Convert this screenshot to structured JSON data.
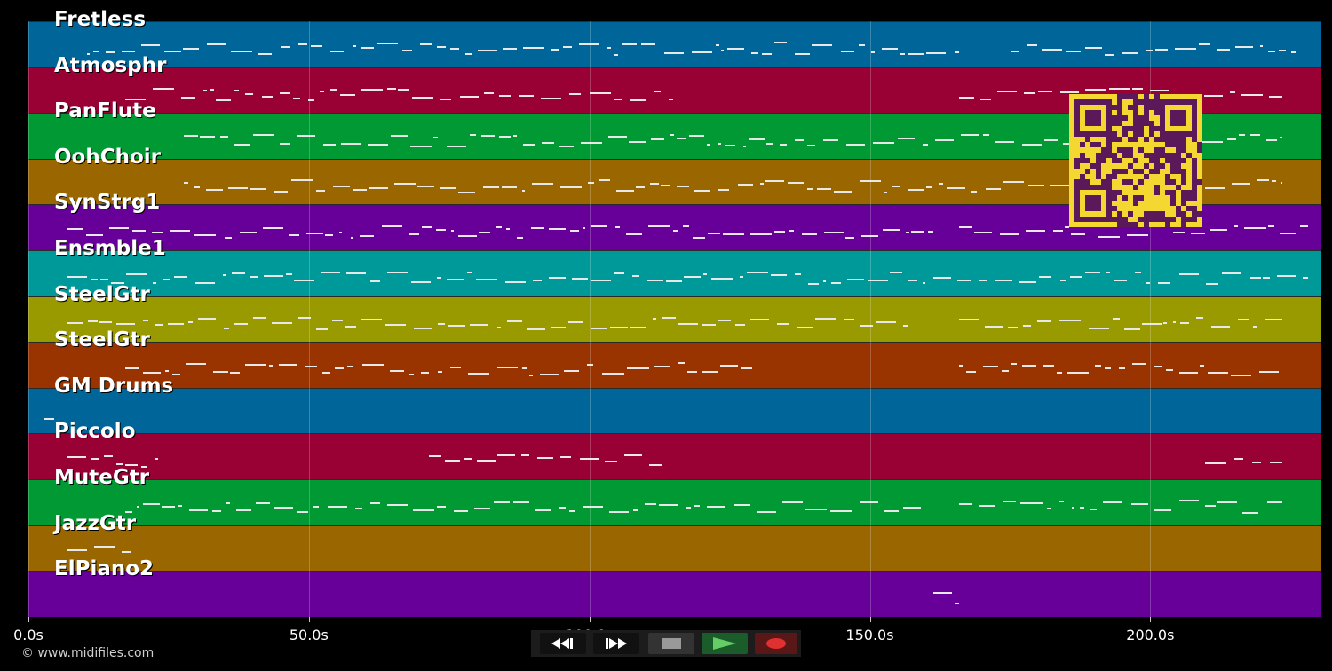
{
  "tracks": [
    {
      "name": "Fretless",
      "color": "#006699"
    },
    {
      "name": "Atmosphr",
      "color": "#990033"
    },
    {
      "name": "PanFlute",
      "color": "#009933"
    },
    {
      "name": "OohChoir",
      "color": "#996600"
    },
    {
      "name": "SynStrg1",
      "color": "#660099"
    },
    {
      "name": "Ensmble1",
      "color": "#009999"
    },
    {
      "name": "SteelGtr",
      "color": "#999900"
    },
    {
      "name": "SteelGtr",
      "color": "#993300"
    },
    {
      "name": "GM Drums",
      "color": "#006699"
    },
    {
      "name": "Piccolo",
      "color": "#990033"
    },
    {
      "name": "MuteGtr",
      "color": "#009933"
    },
    {
      "name": "JazzGtr",
      "color": "#996600"
    },
    {
      "name": "ElPiano2",
      "color": "#660099"
    }
  ],
  "timeline": {
    "ticks": [
      "0.0s",
      "50.0s",
      "100.0s",
      "150.0s",
      "200.0s"
    ],
    "tick_seconds": [
      0,
      50,
      100,
      150,
      200
    ],
    "max_seconds": 230.5
  },
  "transport": {
    "rewind_icon": "rewind-icon",
    "fast_forward_icon": "fast-forward-icon",
    "stop_icon": "stop-icon",
    "play_icon": "play-icon",
    "record_icon": "record-icon",
    "colors": {
      "button_bg": "#111111",
      "stop_bg": "#333333",
      "play_bg": "#1a5c2a",
      "play_fg": "#66cc66",
      "record_bg": "#5a1717",
      "record_fg": "#e03030"
    }
  },
  "overlay": {
    "qr_icon": "qr-code-icon",
    "qr_bg": "#f5d731",
    "qr_fg": "#5a1a5a"
  },
  "copyright": "© www.midifiles.com"
}
